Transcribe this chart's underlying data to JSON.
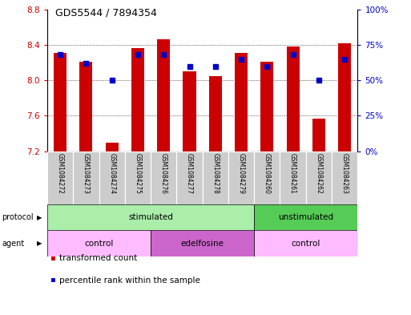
{
  "title": "GDS5544 / 7894354",
  "samples": [
    "GSM1084272",
    "GSM1084273",
    "GSM1084274",
    "GSM1084275",
    "GSM1084276",
    "GSM1084277",
    "GSM1084278",
    "GSM1084279",
    "GSM1084260",
    "GSM1084261",
    "GSM1084262",
    "GSM1084263"
  ],
  "bar_bottom": 7.2,
  "transformed_count": [
    8.31,
    8.21,
    7.3,
    8.36,
    8.46,
    8.1,
    8.05,
    8.31,
    8.21,
    8.38,
    7.57,
    8.42
  ],
  "percentile_rank": [
    68,
    62,
    50,
    68,
    68,
    60,
    60,
    65,
    60,
    68,
    50,
    65
  ],
  "ylim_left": [
    7.2,
    8.8
  ],
  "ylim_right": [
    0,
    100
  ],
  "yticks_left": [
    7.2,
    7.6,
    8.0,
    8.4,
    8.8
  ],
  "yticks_right": [
    0,
    25,
    50,
    75,
    100
  ],
  "ytick_labels_right": [
    "0%",
    "25%",
    "50%",
    "75%",
    "100%"
  ],
  "bar_color": "#cc0000",
  "dot_color": "#0000cc",
  "protocol_groups": [
    {
      "label": "stimulated",
      "start": 0,
      "end": 8,
      "color": "#aaeeaa"
    },
    {
      "label": "unstimulated",
      "start": 8,
      "end": 12,
      "color": "#55cc55"
    }
  ],
  "agent_groups": [
    {
      "label": "control",
      "start": 0,
      "end": 4,
      "color": "#ffbbff"
    },
    {
      "label": "edelfosine",
      "start": 4,
      "end": 8,
      "color": "#cc66cc"
    },
    {
      "label": "control",
      "start": 8,
      "end": 12,
      "color": "#ffbbff"
    }
  ],
  "legend_bar_color": "#cc0000",
  "legend_dot_color": "#0000cc",
  "legend_bar_label": "transformed count",
  "legend_dot_label": "percentile rank within the sample",
  "bar_width": 0.5,
  "background_color": "#ffffff",
  "plot_bg": "#ffffff",
  "ylabel_left_color": "#cc0000",
  "ylabel_right_color": "#0000cc",
  "label_bg": "#cccccc"
}
